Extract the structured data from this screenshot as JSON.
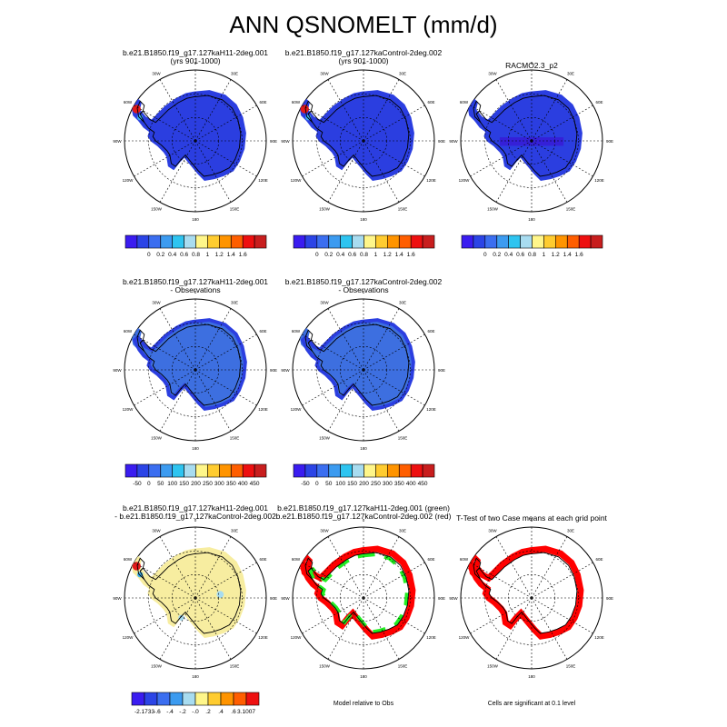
{
  "page": {
    "title": "ANN QSNOMELT (mm/d)"
  },
  "colors": {
    "ocean": "#ffffff",
    "dark_blue": "#2b3ee0",
    "mid_blue": "#3d6fe0",
    "pale_yellow": "#f7eda0",
    "green": "#22ee22",
    "red": "#ff0000",
    "coast": "#000000"
  },
  "lon_labels": [
    "0",
    "30E",
    "60E",
    "90E",
    "120E",
    "150E",
    "180",
    "150W",
    "120W",
    "90W",
    "60W",
    "30W"
  ],
  "panels": [
    {
      "title": "b.e21.B1850.f19_g17.127kaH11-2deg.001\n(yrs 901-1000)",
      "fill": "dark_blue",
      "style": "model"
    },
    {
      "title": "b.e21.B1850.f19_g17.127kaControl-2deg.002\n(yrs 901-1000)",
      "fill": "dark_blue",
      "style": "model"
    },
    {
      "title": "RACMO2.3_p2",
      "fill": "dark_blue",
      "style": "racmo"
    },
    {
      "title": "b.e21.B1850.f19_g17.127kaH11-2deg.001\n- Observations",
      "fill": "mid_blue",
      "style": "diff"
    },
    {
      "title": "b.e21.B1850.f19_g17.127kaControl-2deg.002\n- Observations",
      "fill": "mid_blue",
      "style": "diff"
    },
    {
      "title": "b.e21.B1850.f19_g17.127kaH11-2deg.001\n- b.e21.B1850.f19_g17.127kaControl-2deg.002",
      "fill": "pale_yellow",
      "style": "casediff"
    },
    {
      "title": "b.e21.B1850.f19_g17.127kaH11-2deg.001 (green)\nb.e21.B1850.f19_g17.127kaControl-2deg.002 (red)",
      "fill": "none",
      "style": "compare"
    },
    {
      "title": "T-Test of two Case means at each grid point",
      "fill": "none",
      "style": "ttest"
    }
  ],
  "chart_data": [
    {
      "type": "heatmap",
      "title": "ANN QSNOMELT (mm/d)",
      "variable": "QSNOMELT",
      "units": "mm/d",
      "projection": "south polar stereographic",
      "colorbars": [
        {
          "name": "model_fields",
          "ticks": [
            "0",
            "0.2",
            "0.4",
            "0.6",
            "0.8",
            "1",
            "1.2",
            "1.4",
            "1.6"
          ],
          "colors": [
            "#3a1cf0",
            "#2b44e6",
            "#3b6ef0",
            "#3c9bf0",
            "#2ec4f0",
            "#a8dcf0",
            "#fff68a",
            "#ffcc30",
            "#ff9400",
            "#ff5e00",
            "#ee1010",
            "#c81e1e"
          ]
        },
        {
          "name": "model_minus_obs",
          "ticks": [
            "-50",
            "0",
            "50",
            "100",
            "150",
            "200",
            "250",
            "300",
            "350",
            "400",
            "450"
          ],
          "colors": [
            "#3a1cf0",
            "#2b44e6",
            "#3b6ef0",
            "#3c9bf0",
            "#2ec4f0",
            "#a8dcf0",
            "#fff68a",
            "#ffcc30",
            "#ff9400",
            "#ff5e00",
            "#ee1010",
            "#c81e1e"
          ]
        },
        {
          "name": "case_difference",
          "ticks": [
            "-2.1733",
            "-.6",
            "-.4",
            "-.2",
            "-.0",
            ".2",
            ".4",
            ".6",
            "3.1007"
          ],
          "colors": [
            "#3a1cf0",
            "#2b44e6",
            "#3b6ef0",
            "#3c9bf0",
            "#a8dcf0",
            "#fff68a",
            "#ffcc30",
            "#ff9400",
            "#ff5e00",
            "#ee1010"
          ]
        }
      ]
    }
  ],
  "notes": {
    "compare": "Model relative to Obs",
    "ttest": "Cells are significant at 0.1 level"
  }
}
